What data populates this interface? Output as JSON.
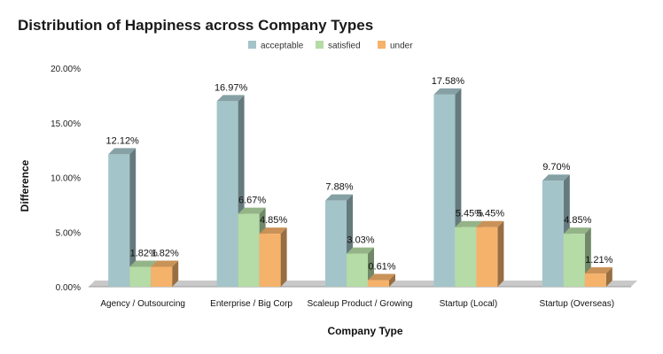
{
  "chart_data": {
    "type": "bar",
    "title": "Distribution of Happiness across Company Types",
    "xlabel": "Company Type",
    "ylabel": "Difference",
    "categories": [
      "Agency / Outsourcing",
      "Enterprise / Big Corp",
      "Scaleup Product / Growing",
      "Startup (Local)",
      "Startup (Overseas)"
    ],
    "series": [
      {
        "name": "acceptable",
        "color": "#a3c4c9",
        "values": [
          12.12,
          16.97,
          7.88,
          17.58,
          9.7
        ],
        "labels": [
          "12.12%",
          "16.97%",
          "7.88%",
          "17.58%",
          "9.70%"
        ]
      },
      {
        "name": "satisfied",
        "color": "#b5dba6",
        "values": [
          1.82,
          6.67,
          3.03,
          5.45,
          4.85
        ],
        "labels": [
          "1.82%",
          "6.67%",
          "3.03%",
          "5.45%",
          "4.85%"
        ]
      },
      {
        "name": "under",
        "color": "#f5b26b",
        "values": [
          1.82,
          4.85,
          0.61,
          5.45,
          1.21
        ],
        "labels": [
          "1.82%",
          "4.85%",
          "0.61%",
          "5.45%",
          "1.21%"
        ]
      }
    ],
    "ylim": [
      0,
      20
    ],
    "yticks": [
      0,
      5,
      10,
      15,
      20
    ],
    "ytick_labels": [
      "0.00%",
      "5.00%",
      "10.00%",
      "15.00%",
      "20.00%"
    ],
    "legend_position": "top",
    "grid": false,
    "style": "3d-bar"
  }
}
